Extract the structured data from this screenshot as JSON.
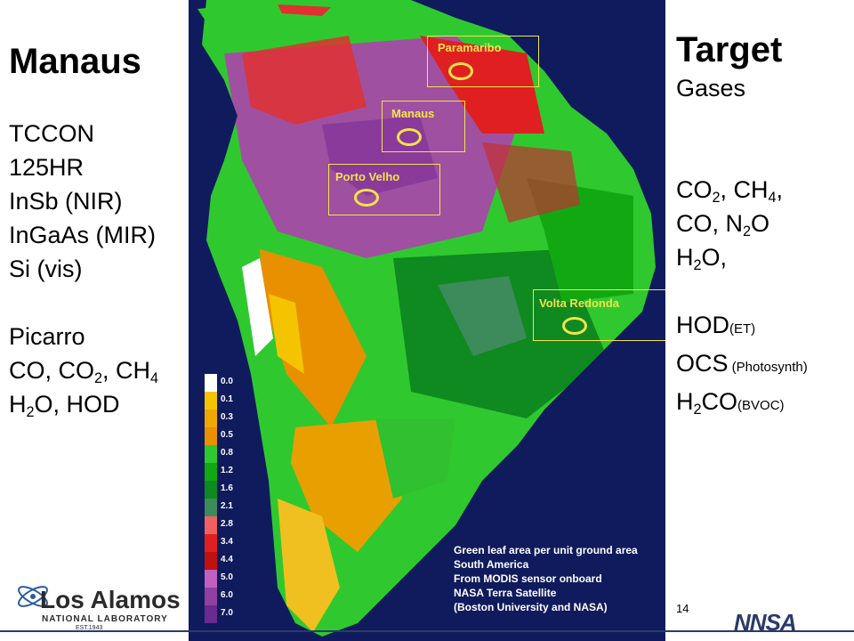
{
  "left": {
    "title": "Manaus",
    "instrument_lines": [
      "TCCON",
      "125HR",
      "InSb (NIR)",
      "InGaAs (MIR)",
      "Si (vis)"
    ],
    "picarro_title": "Picarro",
    "picarro_line1_a": "CO, CO",
    "picarro_line1_sub": "2",
    "picarro_line1_b": ", CH",
    "picarro_line1_sub2": "4",
    "picarro_line2_a": "H",
    "picarro_line2_sub": "2",
    "picarro_line2_b": "O, HOD"
  },
  "right": {
    "title": "Target",
    "subtitle": "Gases",
    "l1_a": "CO",
    "l1_s1": "2",
    "l1_b": ", CH",
    "l1_s2": "4",
    "l1_c": ",",
    "l2_a": "CO, N",
    "l2_s1": "2",
    "l2_b": "O",
    "l3_a": "H",
    "l3_s1": "2",
    "l3_b": "O,",
    "l4_a": "HOD",
    "l4_small": "(ET)",
    "l5_a": "OCS",
    "l5_small": " (Photosynth)",
    "l6_a": "H",
    "l6_s1": "2",
    "l6_b": "CO",
    "l6_small": "(BVOC)"
  },
  "map": {
    "cities": [
      "Paramaribo",
      "Manaus",
      "Porto Velho",
      "Volta Redonda"
    ],
    "legend": [
      "0.0",
      "0.1",
      "0.3",
      "0.5",
      "0.8",
      "1.2",
      "1.6",
      "2.1",
      "2.8",
      "3.4",
      "4.4",
      "5.0",
      "6.0",
      "7.0"
    ],
    "legend_colors": [
      "#ffffff",
      "#f5c400",
      "#f0a800",
      "#e89000",
      "#2fc92f",
      "#12a812",
      "#0e8a20",
      "#3d8a5a",
      "#f06060",
      "#e02020",
      "#c01010",
      "#c060c0",
      "#9040a0",
      "#6a2a90"
    ],
    "caption": [
      "Green leaf area per unit ground area",
      "South America",
      "From MODIS sensor onboard",
      "NASA Terra Satellite",
      "(Boston University and NASA)"
    ]
  },
  "footer": {
    "page_number": "14",
    "lanl_name": "Los Alamos",
    "lanl_sub": "NATIONAL LABORATORY",
    "lanl_est": "EST.1943",
    "nnsa": "NNSA"
  }
}
